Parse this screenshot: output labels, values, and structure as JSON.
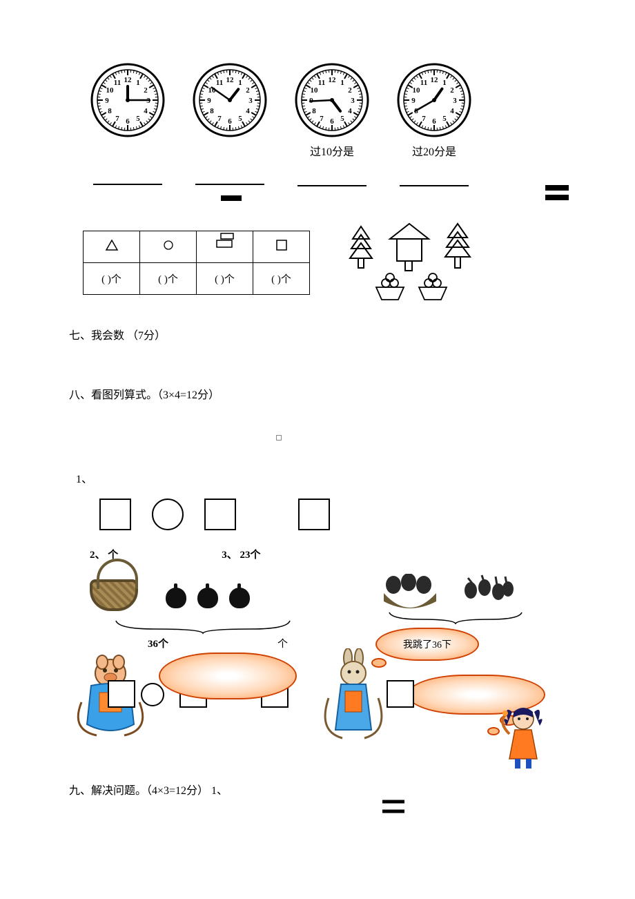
{
  "clocks": [
    {
      "caption": "",
      "hour_angle": 0,
      "minute_angle": 90,
      "show_line": true
    },
    {
      "caption": "",
      "hour_angle": 38,
      "minute_angle": 305,
      "show_line": true
    },
    {
      "caption": "过10分是",
      "hour_angle": 143,
      "minute_angle": 267,
      "show_line": true
    },
    {
      "caption": "过20分是",
      "hour_angle": 35,
      "minute_angle": 240,
      "show_line": true
    }
  ],
  "shape_table": {
    "headers": [
      "△",
      "○",
      "▭",
      "□"
    ],
    "row_label": "(   )个"
  },
  "sections": {
    "seven": "七、我会数 （7分）",
    "eight": "八、看图列算式。（3×4=12分）",
    "nine": "九、解决问题。（4×3=12分）    1、"
  },
  "q_labels": {
    "q1": "1、",
    "q2": "2、  个",
    "q3": "3、 23个",
    "total36": "36个",
    "unit": "个",
    "bubble_text": "我跳了36下"
  },
  "colors": {
    "cloud_border": "#d04000",
    "cloud_fill_inner": "#ffffff",
    "cloud_fill_outer": "#ff9a50",
    "basket_border": "#5a4a2a",
    "text": "#000000"
  }
}
